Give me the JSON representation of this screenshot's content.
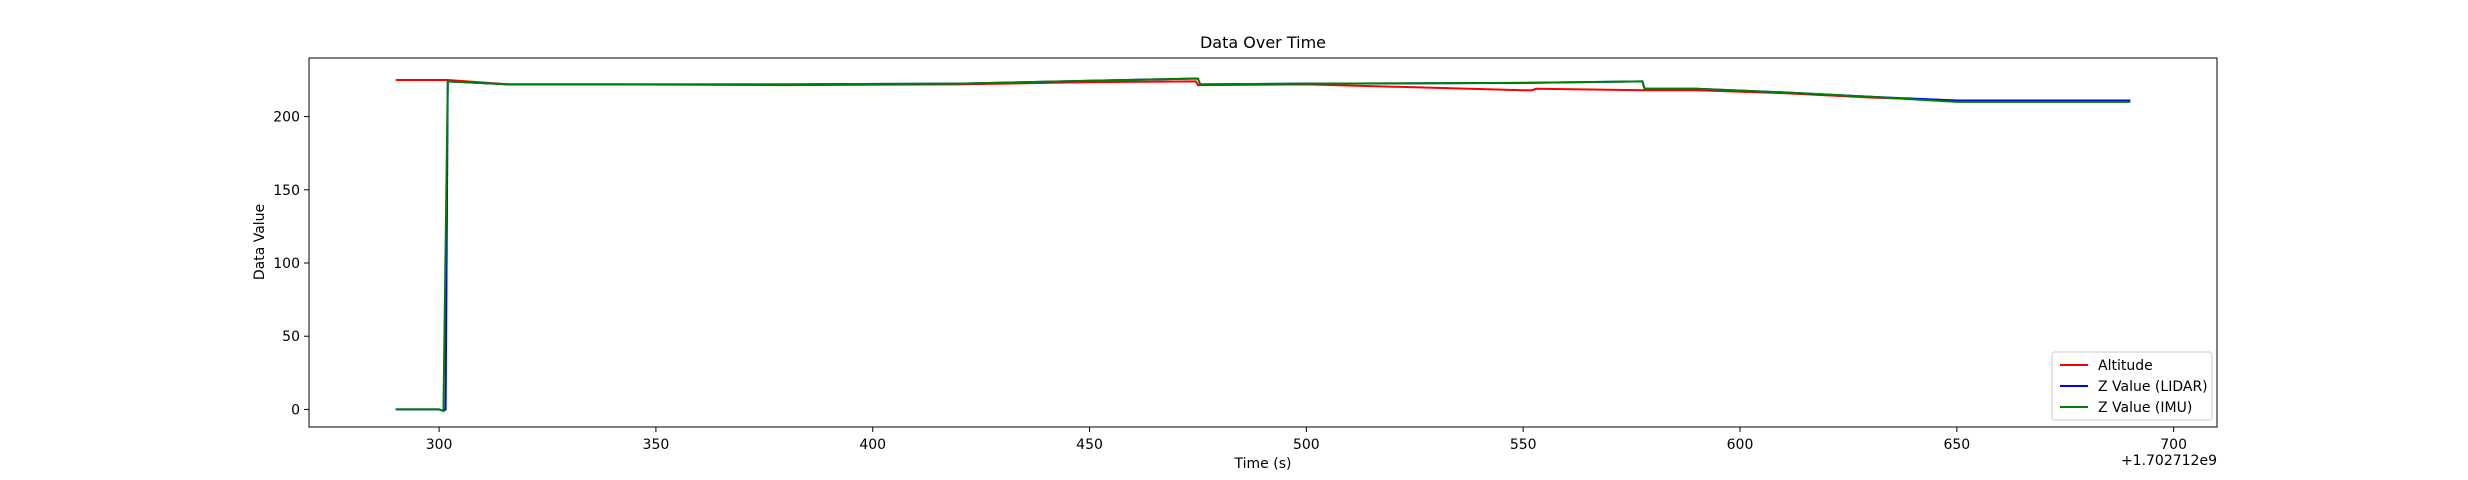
{
  "chart_data": {
    "type": "line",
    "title": "Data Over Time",
    "xlabel": "Time (s)",
    "ylabel": "Data Value",
    "x_offset_label": "+1.702712e9",
    "xlim": [
      270,
      710
    ],
    "ylim": [
      -12,
      240
    ],
    "xticks": [
      300,
      350,
      400,
      450,
      500,
      550,
      600,
      650,
      700
    ],
    "yticks": [
      0,
      50,
      100,
      150,
      200
    ],
    "grid": false,
    "legend_position": "lower right",
    "series": [
      {
        "name": "Altitude",
        "color": "#ff0000",
        "x": [
          290,
          302,
          316,
          340,
          380,
          420,
          450,
          474.5,
          475,
          500,
          550,
          552,
          553,
          578,
          590,
          610,
          630,
          650,
          670,
          690
        ],
        "y": [
          225,
          225,
          222,
          222,
          221.5,
          222,
          223.5,
          224,
          221.5,
          222,
          218,
          218,
          219,
          218,
          218,
          216,
          213,
          211,
          211,
          211
        ]
      },
      {
        "name": "Z Value (LIDAR)",
        "color": "#0000ff",
        "x": [
          290,
          300,
          301,
          301.5,
          302,
          316,
          340,
          380,
          420,
          450,
          475,
          475.5,
          500,
          550,
          577.5,
          578,
          590,
          610,
          630,
          650,
          670,
          690
        ],
        "y": [
          0,
          0,
          -1,
          0,
          224,
          222,
          222,
          222,
          222.5,
          224.5,
          226,
          222,
          222.5,
          223,
          224,
          219,
          219,
          216.5,
          213.5,
          211,
          211,
          211
        ]
      },
      {
        "name": "Z Value (IMU)",
        "color": "#008000",
        "x": [
          290,
          300,
          301,
          302,
          316,
          340,
          380,
          420,
          450,
          475,
          475.5,
          500,
          550,
          577.5,
          578,
          590,
          610,
          630,
          650,
          670,
          690
        ],
        "y": [
          0,
          0,
          -1,
          224,
          222,
          222,
          222,
          222.5,
          224.5,
          226,
          222,
          222.5,
          223,
          224,
          219,
          219,
          216.5,
          213.5,
          210,
          210,
          210
        ]
      }
    ]
  }
}
